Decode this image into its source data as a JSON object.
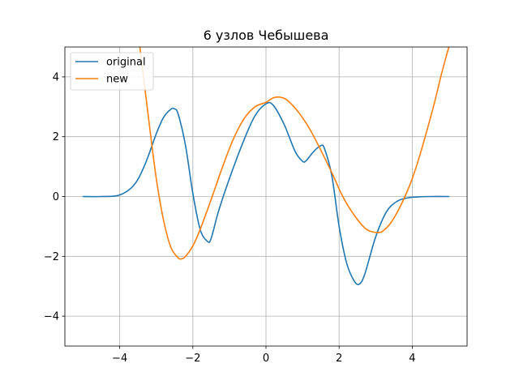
{
  "chart_data": {
    "type": "line",
    "title": "6 узлов Чебышева",
    "xlabel": "",
    "ylabel": "",
    "xlim": [
      -5.5,
      5.5
    ],
    "ylim": [
      -5,
      5
    ],
    "xticks": [
      -4,
      -2,
      0,
      2,
      4
    ],
    "yticks": [
      -4,
      -2,
      0,
      2,
      4
    ],
    "xtick_labels": [
      "−4",
      "−2",
      "0",
      "2",
      "4"
    ],
    "ytick_labels": [
      "−4",
      "−2",
      "0",
      "2",
      "4"
    ],
    "grid": true,
    "legend_position": "top-left",
    "series": [
      {
        "name": "original",
        "color": "#1f77b4",
        "x": [
          -5.0,
          -4.5,
          -4.0,
          -3.6,
          -3.3,
          -3.0,
          -2.8,
          -2.6,
          -2.5,
          -2.4,
          -2.2,
          -2.0,
          -1.8,
          -1.6,
          -1.5,
          -1.3,
          -1.0,
          -0.6,
          -0.3,
          0.0,
          0.2,
          0.5,
          0.8,
          1.0,
          1.1,
          1.3,
          1.5,
          1.6,
          1.8,
          2.0,
          2.2,
          2.4,
          2.55,
          2.7,
          3.0,
          3.3,
          3.6,
          3.9,
          4.2,
          4.5,
          5.0
        ],
        "y": [
          0.0,
          0.0,
          0.05,
          0.4,
          1.1,
          2.1,
          2.65,
          2.92,
          2.93,
          2.75,
          1.7,
          0.1,
          -1.1,
          -1.5,
          -1.4,
          -0.5,
          0.6,
          1.9,
          2.7,
          3.1,
          3.05,
          2.4,
          1.5,
          1.18,
          1.2,
          1.5,
          1.7,
          1.6,
          0.7,
          -1.0,
          -2.2,
          -2.8,
          -2.93,
          -2.6,
          -1.35,
          -0.5,
          -0.15,
          -0.04,
          -0.01,
          0.0,
          0.0
        ]
      },
      {
        "name": "new",
        "color": "#ff7f0e",
        "x": [
          -3.45,
          -3.35,
          -3.2,
          -3.0,
          -2.8,
          -2.6,
          -2.4,
          -2.3,
          -2.2,
          -2.0,
          -1.8,
          -1.5,
          -1.2,
          -0.9,
          -0.6,
          -0.3,
          0.0,
          0.2,
          0.4,
          0.6,
          0.9,
          1.2,
          1.5,
          1.8,
          2.1,
          2.4,
          2.7,
          2.9,
          3.1,
          3.2,
          3.4,
          3.6,
          3.8,
          4.0,
          4.2,
          4.4,
          4.6,
          4.8,
          5.0
        ],
        "y": [
          5.0,
          4.0,
          2.5,
          0.6,
          -0.8,
          -1.7,
          -2.05,
          -2.08,
          -2.0,
          -1.65,
          -1.1,
          -0.1,
          0.95,
          1.9,
          2.6,
          3.0,
          3.15,
          3.3,
          3.32,
          3.2,
          2.8,
          2.25,
          1.55,
          0.8,
          0.0,
          -0.6,
          -1.05,
          -1.18,
          -1.2,
          -1.15,
          -0.9,
          -0.5,
          0.0,
          0.6,
          1.35,
          2.2,
          3.1,
          4.1,
          5.0
        ]
      }
    ]
  }
}
